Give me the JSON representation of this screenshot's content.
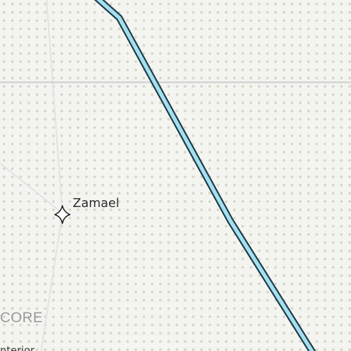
{
  "map": {
    "background_color": "#f4f4f0",
    "dot_color": "#d6d6c8",
    "border_color": "#d2d2d2",
    "lane_color": "#e2e2e2",
    "route": {
      "fill_color": "#a5dff0",
      "casing_color": "#1e3c48"
    },
    "places": [
      {
        "name": "Zamael",
        "icon": "four-point-star-icon"
      }
    ],
    "regions": [
      {
        "name": "CORE"
      }
    ],
    "partial_labels": [
      {
        "text": "nterior"
      }
    ]
  }
}
